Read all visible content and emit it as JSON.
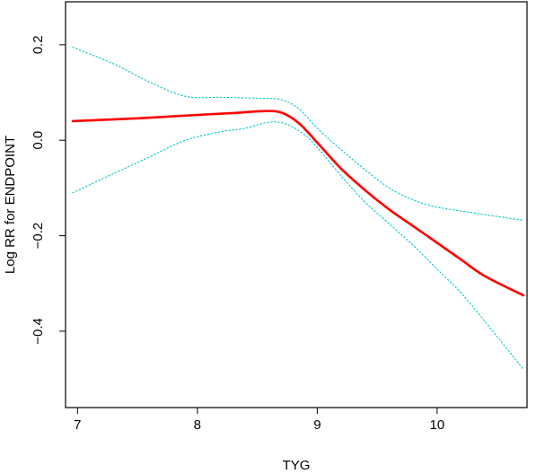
{
  "chart_data": {
    "type": "line",
    "title": "",
    "xlabel": "TYG",
    "ylabel": "Log RR for ENDPOINT",
    "xlim": [
      6.9,
      10.75
    ],
    "ylim": [
      -0.56,
      0.29
    ],
    "x_ticks": [
      7,
      8,
      9,
      10
    ],
    "y_ticks": [
      -0.4,
      -0.2,
      0.0,
      0.2
    ],
    "x_tick_labels": [
      "7",
      "8",
      "9",
      "10"
    ],
    "y_tick_labels": [
      "−0.4",
      "−0.2",
      "0.0",
      "0.2"
    ],
    "grid": false,
    "legend": "none",
    "series": [
      {
        "role": "estimate",
        "color": "#ff0000",
        "style": "solid",
        "x": [
          6.96,
          7.5,
          8.0,
          8.3,
          8.55,
          8.7,
          8.85,
          9.0,
          9.2,
          9.4,
          9.6,
          9.8,
          10.0,
          10.2,
          10.4,
          10.72
        ],
        "y": [
          0.04,
          0.046,
          0.053,
          0.057,
          0.061,
          0.058,
          0.035,
          -0.005,
          -0.06,
          -0.105,
          -0.145,
          -0.18,
          -0.215,
          -0.25,
          -0.285,
          -0.325
        ]
      },
      {
        "role": "upper-ci",
        "color": "#00c8c8",
        "style": "dotted",
        "x": [
          6.96,
          7.3,
          7.6,
          7.9,
          8.2,
          8.5,
          8.7,
          8.85,
          9.0,
          9.2,
          9.4,
          9.6,
          9.8,
          10.0,
          10.3,
          10.72
        ],
        "y": [
          0.195,
          0.16,
          0.122,
          0.092,
          0.09,
          0.088,
          0.085,
          0.065,
          0.025,
          -0.02,
          -0.062,
          -0.1,
          -0.125,
          -0.14,
          -0.152,
          -0.168
        ]
      },
      {
        "role": "lower-ci",
        "color": "#00c8c8",
        "style": "dotted",
        "x": [
          6.96,
          7.3,
          7.6,
          7.9,
          8.2,
          8.4,
          8.6,
          8.75,
          8.9,
          9.0,
          9.2,
          9.4,
          9.6,
          9.8,
          10.0,
          10.2,
          10.4,
          10.72
        ],
        "y": [
          -0.11,
          -0.07,
          -0.035,
          0.0,
          0.018,
          0.025,
          0.038,
          0.033,
          0.01,
          -0.015,
          -0.075,
          -0.13,
          -0.175,
          -0.22,
          -0.27,
          -0.32,
          -0.38,
          -0.48
        ]
      }
    ]
  }
}
